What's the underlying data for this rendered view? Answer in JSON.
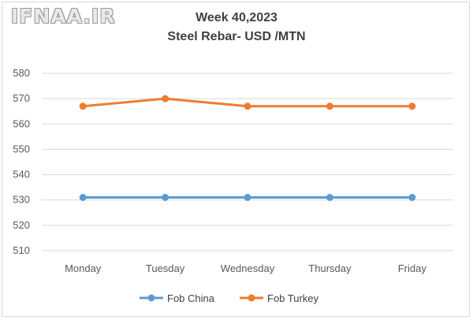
{
  "watermark": "IFNAA.IR",
  "chart_data": {
    "type": "line",
    "title": "Week 40,2023",
    "subtitle": "Steel Rebar- USD /MTN",
    "categories": [
      "Monday",
      "Tuesday",
      "Wednesday",
      "Thursday",
      "Friday"
    ],
    "series": [
      {
        "name": "Fob China",
        "values": [
          531,
          531,
          531,
          531,
          531
        ],
        "color": "#5b9bd5"
      },
      {
        "name": "Fob Turkey",
        "values": [
          567,
          570,
          567,
          567,
          567
        ],
        "color": "#ed7d31"
      }
    ],
    "ylim": [
      510,
      580
    ],
    "yticks": [
      510,
      520,
      530,
      540,
      550,
      560,
      570,
      580
    ],
    "grid": true,
    "legend_position": "bottom",
    "gridline_color": "#d9d9d9"
  }
}
